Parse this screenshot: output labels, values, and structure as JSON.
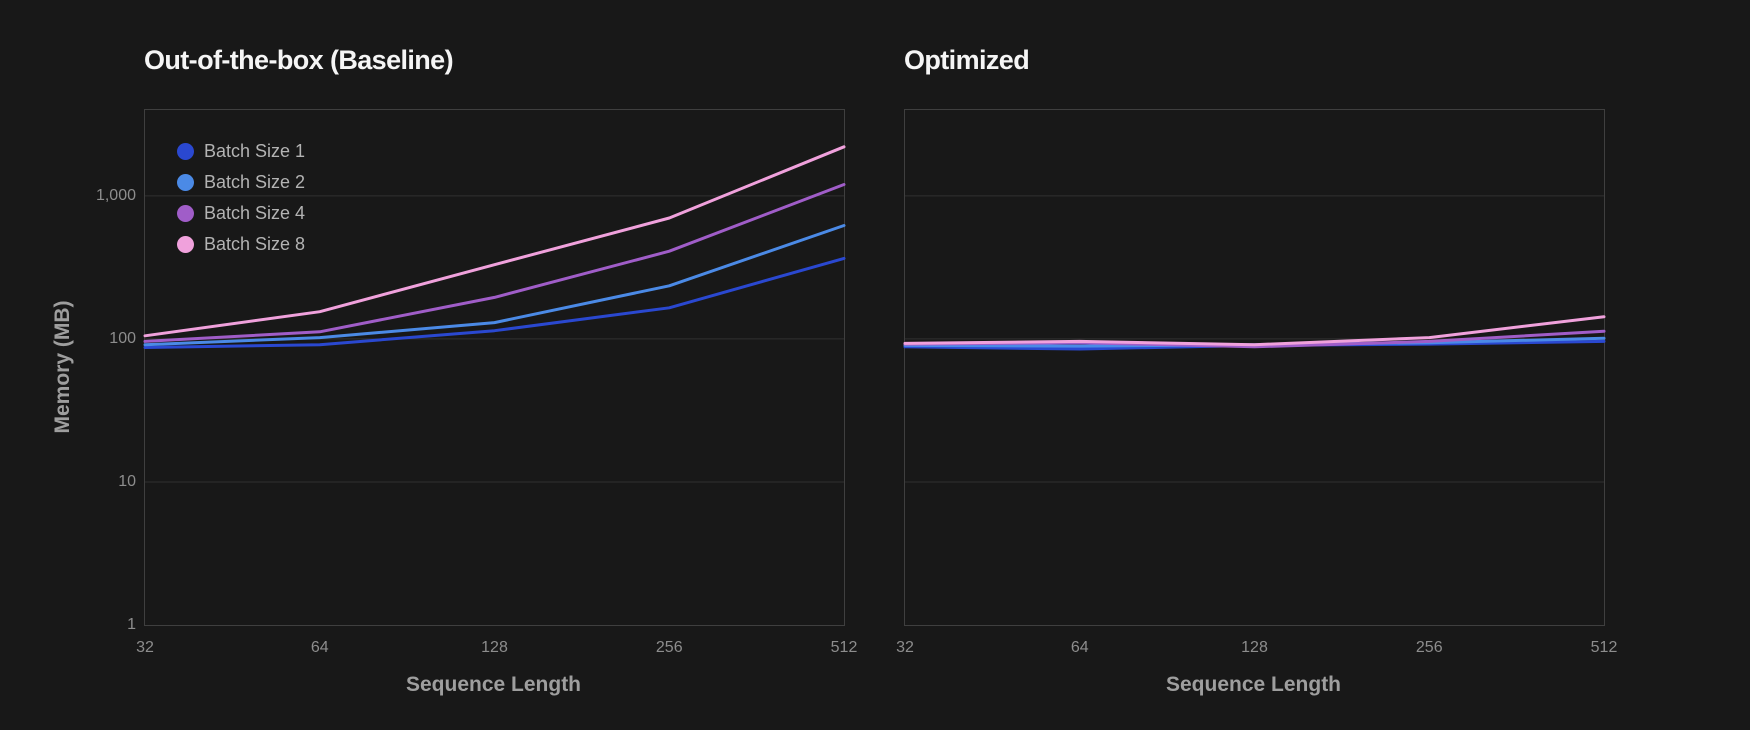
{
  "page": {
    "background": "#181818",
    "plot_border_color": "#3f3f3f",
    "gridline_color": "#303030",
    "title_color": "#f5f5f5",
    "tick_label_color": "#8d8d8d",
    "axis_title_color": "#9e9e9e",
    "legend_label_color": "#b3b3b3"
  },
  "chart_data": [
    {
      "type": "line",
      "title": "Out-of-the-box (Baseline)",
      "xlabel": "Sequence Length",
      "ylabel": "Memory (MB)",
      "x": [
        32,
        64,
        128,
        256,
        512
      ],
      "xtick_labels": [
        "32",
        "64",
        "128",
        "256",
        "512"
      ],
      "xscale": "log2-categorical",
      "yscale": "log",
      "ylim": [
        1,
        3980
      ],
      "yticks": [
        1,
        10,
        100,
        1000
      ],
      "ytick_labels": [
        "1",
        "10",
        "100",
        "1,000"
      ],
      "show_ytick_labels": true,
      "grid": "horizontal",
      "legend_position": "top-left-inside",
      "show_legend": true,
      "series": [
        {
          "name": "Batch Size 1",
          "color": "#2a48d0",
          "values": [
            87,
            91,
            114,
            165,
            365
          ]
        },
        {
          "name": "Batch Size 2",
          "color": "#4b8ae6",
          "values": [
            91,
            102,
            130,
            235,
            620
          ]
        },
        {
          "name": "Batch Size 4",
          "color": "#a05dc8",
          "values": [
            96,
            112,
            195,
            410,
            1200
          ]
        },
        {
          "name": "Batch Size 8",
          "color": "#f0a1dc",
          "values": [
            105,
            155,
            330,
            700,
            2200
          ]
        }
      ]
    },
    {
      "type": "line",
      "title": "Optimized",
      "xlabel": "Sequence Length",
      "ylabel": "Memory (MB)",
      "x": [
        32,
        64,
        128,
        256,
        512
      ],
      "xtick_labels": [
        "32",
        "64",
        "128",
        "256",
        "512"
      ],
      "xscale": "log2-categorical",
      "yscale": "log",
      "ylim": [
        1,
        3980
      ],
      "yticks": [
        1,
        10,
        100,
        1000
      ],
      "ytick_labels": [
        "1",
        "10",
        "100",
        "1,000"
      ],
      "show_ytick_labels": false,
      "grid": "horizontal",
      "show_legend": false,
      "series": [
        {
          "name": "Batch Size 1",
          "color": "#2a48d0",
          "values": [
            88,
            85,
            90,
            92,
            96
          ]
        },
        {
          "name": "Batch Size 2",
          "color": "#4b8ae6",
          "values": [
            90,
            89,
            91,
            94,
            101
          ]
        },
        {
          "name": "Batch Size 4",
          "color": "#a05dc8",
          "values": [
            92,
            94,
            88,
            96,
            113
          ]
        },
        {
          "name": "Batch Size 8",
          "color": "#f0a1dc",
          "values": [
            93,
            96,
            91,
            102,
            143
          ]
        }
      ]
    }
  ]
}
